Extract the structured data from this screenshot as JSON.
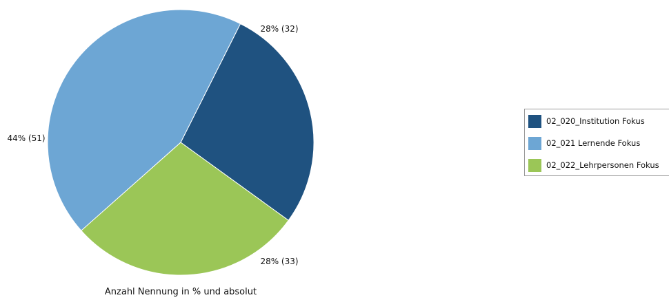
{
  "chart_data": {
    "type": "pie",
    "title": "Anzahl Nennung in % und absolut",
    "series": [
      {
        "name": "02_020_Institution Fokus",
        "value": 32,
        "label": "28% (32)",
        "color": "#1F5280"
      },
      {
        "name": "02_021 Lernende Fokus",
        "value": 51,
        "label": "44% (51)",
        "color": "#6DA6D4"
      },
      {
        "name": "02_022_Lehrpersonen Fokus",
        "value": 33,
        "label": "28% (33)",
        "color": "#9BC657"
      }
    ],
    "legend_position": "right"
  }
}
